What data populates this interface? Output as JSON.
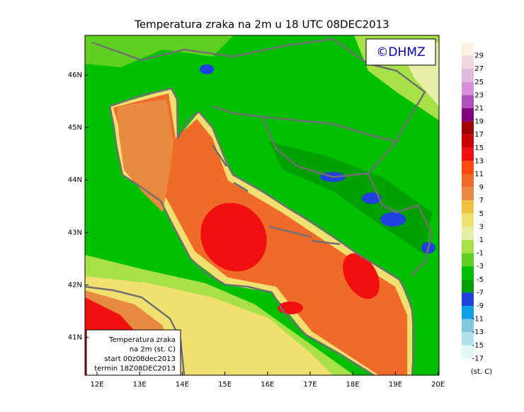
{
  "title": "Temperatura zraka na 2m u 18 UTC 08DEC2013",
  "logo": "©DHMZ",
  "lat_labels": [
    "46N",
    "45N",
    "44N",
    "43N",
    "42N",
    "41N"
  ],
  "lon_labels": [
    "12E",
    "13E",
    "14E",
    "15E",
    "16E",
    "17E",
    "18E",
    "19E",
    "20E"
  ],
  "colorbar": {
    "levels": [
      29,
      27,
      25,
      23,
      21,
      19,
      17,
      15,
      13,
      11,
      9,
      7,
      5,
      3,
      1,
      -1,
      -3,
      -5,
      -7,
      -9,
      -11,
      -13,
      -15,
      -17
    ],
    "colors": [
      "#fff0e0",
      "#f0d8e0",
      "#e0b8e0",
      "#d890d8",
      "#b050c0",
      "#800080",
      "#a00000",
      "#c80000",
      "#f01010",
      "#ff4a10",
      "#f06a2a",
      "#e88a40",
      "#f0c040",
      "#f0e070",
      "#e8f0a8",
      "#a8e048",
      "#60d020",
      "#00c000",
      "#00a000",
      "#2040e0",
      "#10a0e8",
      "#80c8e0",
      "#b0e0e8",
      "#e0f8f8",
      "#ffffff"
    ],
    "unit": "(st. C)"
  },
  "legend_box": [
    "Temperatura zraka",
    "na 2m (st. C)",
    "start 00z08dec2013",
    "termin 18Z08DEC2013"
  ]
}
